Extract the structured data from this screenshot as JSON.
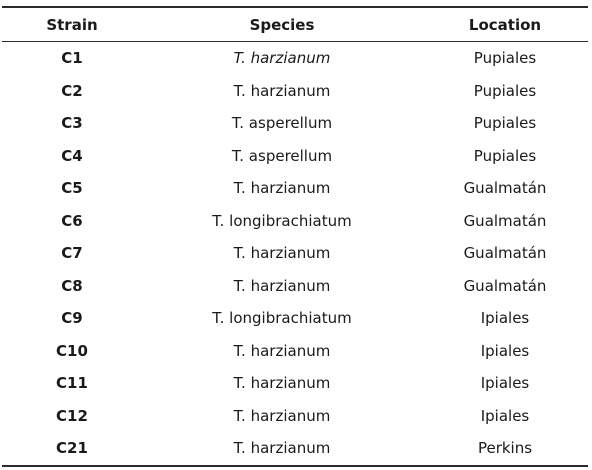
{
  "table": {
    "headers": [
      "Strain",
      "Species",
      "Location"
    ],
    "rows": [
      {
        "strain": "C1",
        "species": "T. harzianum",
        "location": "Pupiales"
      },
      {
        "strain": "C2",
        "species": "T. harzianum",
        "location": "Pupiales"
      },
      {
        "strain": "C3",
        "species": "T. asperellum",
        "location": "Pupiales"
      },
      {
        "strain": "C4",
        "species": "T. asperellum",
        "location": "Pupiales"
      },
      {
        "strain": "C5",
        "species": "T. harzianum",
        "location": "Gualmatán"
      },
      {
        "strain": "C6",
        "species": "T. longibrachiatum",
        "location": "Gualmatán"
      },
      {
        "strain": "C7",
        "species": "T. harzianum",
        "location": "Gualmatán"
      },
      {
        "strain": "C8",
        "species": "T. harzianum",
        "location": "Gualmatán"
      },
      {
        "strain": "C9",
        "species": "T. longibrachiatum",
        "location": "Ipiales"
      },
      {
        "strain": "C10",
        "species": "T. harzianum",
        "location": "Ipiales"
      },
      {
        "strain": "C11",
        "species": "T. harzianum",
        "location": "Ipiales"
      },
      {
        "strain": "C12",
        "species": "T. harzianum",
        "location": "Ipiales"
      },
      {
        "strain": "C21",
        "species": "T. harzianum",
        "location": "Perkins"
      }
    ]
  }
}
